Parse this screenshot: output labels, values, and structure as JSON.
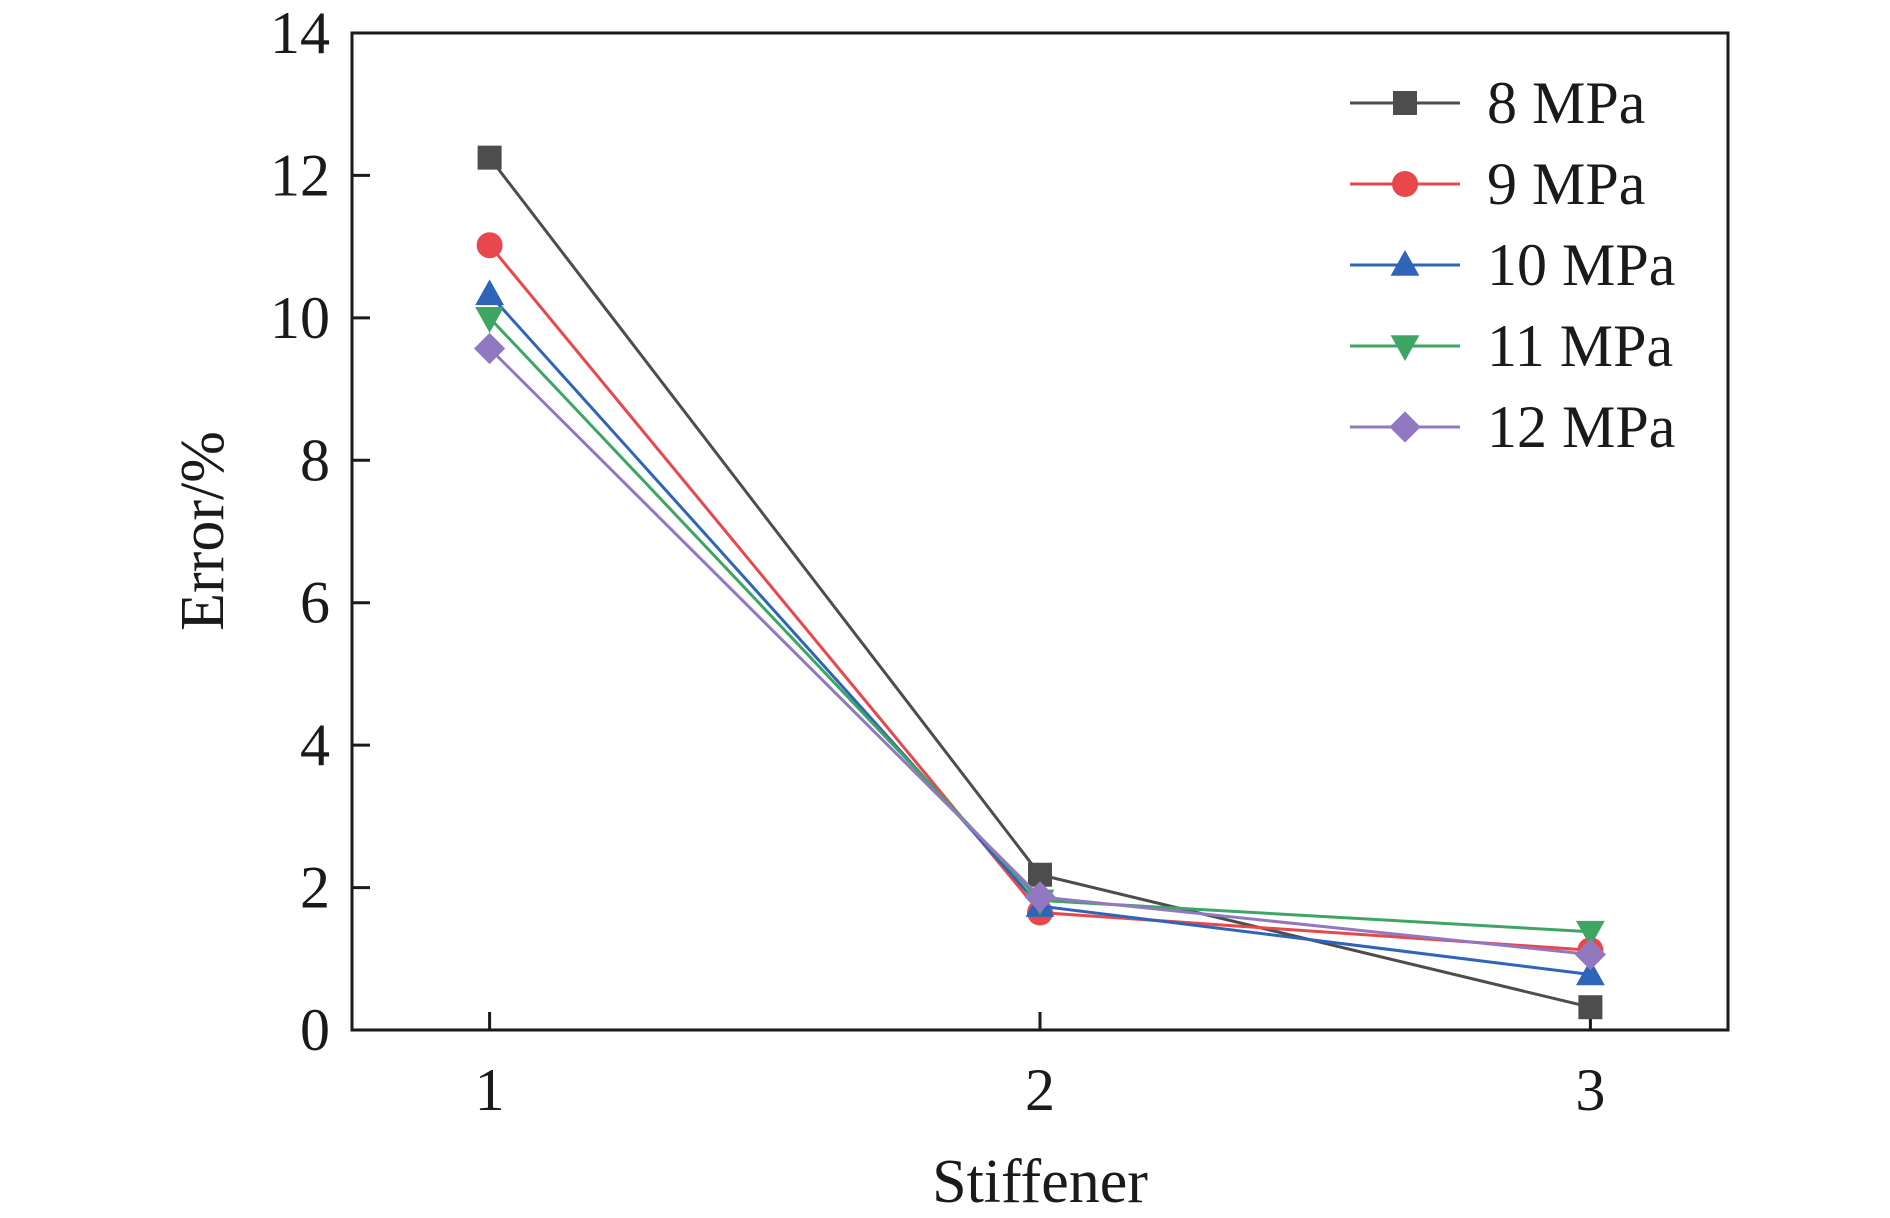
{
  "chart_data": {
    "type": "line",
    "xlabel": "Stiffener",
    "ylabel": "Error/%",
    "x": [
      1,
      2,
      3
    ],
    "xticks": [
      "1",
      "2",
      "3"
    ],
    "xlim": [
      0.75,
      3.25
    ],
    "ylim": [
      0,
      14
    ],
    "yticks": [
      "0",
      "2",
      "4",
      "6",
      "8",
      "10",
      "12",
      "14"
    ],
    "grid": false,
    "legend_position": "top-right",
    "series": [
      {
        "name": "8 MPa",
        "values": [
          12.25,
          2.18,
          0.32
        ],
        "color": "#4d4d4d",
        "marker": "square"
      },
      {
        "name": "9 MPa",
        "values": [
          11.02,
          1.65,
          1.12
        ],
        "color": "#e8474c",
        "marker": "circle"
      },
      {
        "name": "10 MPa",
        "values": [
          10.33,
          1.74,
          0.78
        ],
        "color": "#2e65b8",
        "marker": "triangle-up"
      },
      {
        "name": "11 MPa",
        "values": [
          10.0,
          1.82,
          1.38
        ],
        "color": "#3fa564",
        "marker": "triangle-down"
      },
      {
        "name": "12 MPa",
        "values": [
          9.57,
          1.87,
          1.06
        ],
        "color": "#9278c0",
        "marker": "diamond"
      }
    ]
  }
}
